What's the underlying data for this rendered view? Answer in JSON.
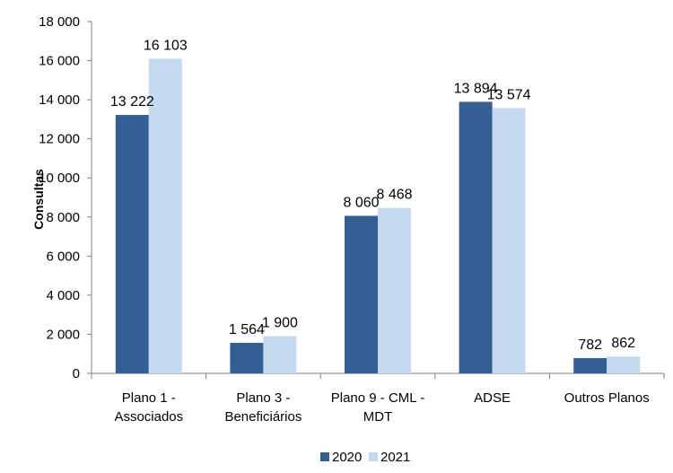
{
  "chart_data": {
    "type": "bar",
    "title": "",
    "xlabel": "",
    "ylabel": "Consultas",
    "ylim": [
      0,
      18000
    ],
    "yticks": [
      "0",
      "2 000",
      "4 000",
      "6 000",
      "8 000",
      "10 000",
      "12 000",
      "14 000",
      "16 000",
      "18 000"
    ],
    "categories": [
      [
        "Plano 1 -",
        "Associados"
      ],
      [
        "Plano 3 -",
        "Beneficiários"
      ],
      [
        "Plano 9 - CML -",
        "MDT"
      ],
      [
        "ADSE"
      ],
      [
        "Outros Planos"
      ]
    ],
    "series": [
      {
        "name": "2020",
        "color": "#335f94",
        "values": [
          13222,
          1564,
          8060,
          13894,
          782
        ],
        "labels": [
          "13 222",
          "1 564",
          "8 060",
          "13 894",
          "782"
        ]
      },
      {
        "name": "2021",
        "color": "#c5d9f1",
        "values": [
          16103,
          1900,
          8468,
          13574,
          862
        ],
        "labels": [
          "16 103",
          "1 900",
          "8 468",
          "13 574",
          "862"
        ]
      }
    ],
    "grid": false,
    "legend": "bottom-center"
  }
}
